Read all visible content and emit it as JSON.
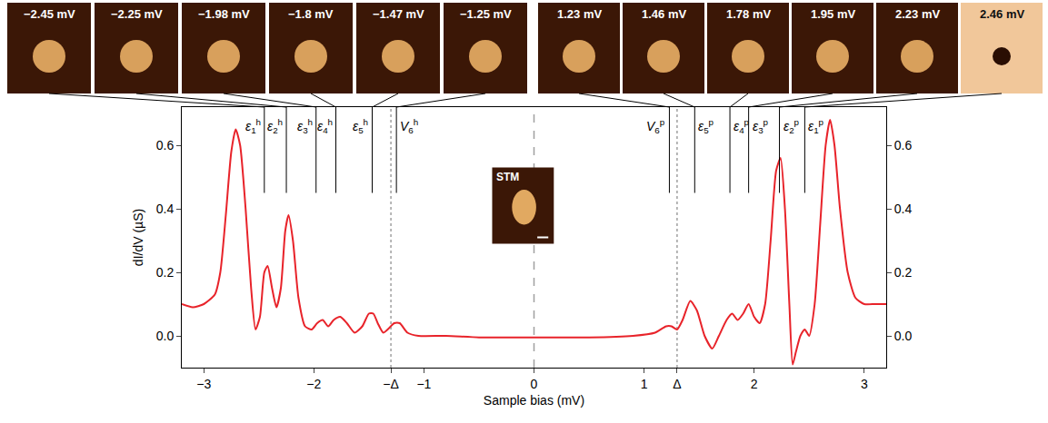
{
  "chart_data": {
    "type": "line",
    "x_label": "Sample bias (mV)",
    "y_label": "dI/dV (µS)",
    "color": "#e8232a",
    "x": [
      -3.2,
      -3.1,
      -3.0,
      -2.9,
      -2.85,
      -2.8,
      -2.75,
      -2.71,
      -2.67,
      -2.62,
      -2.57,
      -2.53,
      -2.49,
      -2.45,
      -2.42,
      -2.38,
      -2.34,
      -2.3,
      -2.26,
      -2.23,
      -2.19,
      -2.14,
      -2.08,
      -2.02,
      -1.97,
      -1.92,
      -1.87,
      -1.82,
      -1.76,
      -1.7,
      -1.63,
      -1.56,
      -1.5,
      -1.46,
      -1.42,
      -1.37,
      -1.33,
      -1.27,
      -1.22,
      -1.15,
      -1.05,
      -0.8,
      -0.5,
      0,
      0.5,
      0.9,
      1.1,
      1.2,
      1.25,
      1.3,
      1.35,
      1.42,
      1.48,
      1.55,
      1.62,
      1.68,
      1.75,
      1.8,
      1.85,
      1.9,
      1.95,
      2.0,
      2.05,
      2.1,
      2.15,
      2.2,
      2.24,
      2.28,
      2.32,
      2.35,
      2.38,
      2.42,
      2.46,
      2.5,
      2.55,
      2.6,
      2.65,
      2.69,
      2.73,
      2.78,
      2.85,
      2.92,
      3.0,
      3.1,
      3.2
    ],
    "values": [
      0.1,
      0.09,
      0.1,
      0.13,
      0.2,
      0.38,
      0.58,
      0.65,
      0.6,
      0.4,
      0.15,
      0.02,
      0.06,
      0.2,
      0.22,
      0.15,
      0.09,
      0.15,
      0.33,
      0.38,
      0.3,
      0.12,
      0.03,
      0.02,
      0.04,
      0.05,
      0.03,
      0.05,
      0.06,
      0.04,
      0.01,
      0.03,
      0.07,
      0.07,
      0.04,
      0.01,
      0.02,
      0.04,
      0.04,
      0.01,
      0,
      0,
      -0.005,
      -0.005,
      -0.005,
      0,
      0.01,
      0.03,
      0.03,
      0.02,
      0.05,
      0.11,
      0.08,
      0,
      -0.04,
      0,
      0.05,
      0.07,
      0.05,
      0.07,
      0.1,
      0.06,
      0.04,
      0.1,
      0.3,
      0.52,
      0.56,
      0.4,
      0.1,
      -0.09,
      -0.05,
      0,
      0.02,
      0,
      0.1,
      0.35,
      0.6,
      0.68,
      0.6,
      0.4,
      0.2,
      0.12,
      0.1,
      0.1,
      0.1
    ],
    "xlim": [
      -3.2,
      3.2
    ],
    "xticks": [
      {
        "value": -3,
        "label": "−3"
      },
      {
        "value": -2,
        "label": "−2"
      },
      {
        "value": -1.3,
        "label": "−Δ"
      },
      {
        "value": -1,
        "label": "−1"
      },
      0,
      1,
      {
        "value": 1.3,
        "label": "Δ"
      },
      2,
      3
    ],
    "ylim": [
      -0.1,
      0.72
    ],
    "yticks": [
      {
        "value": 0,
        "label": "0.0"
      },
      0.2,
      0.4,
      0.6
    ],
    "y2lim": [
      -0.1,
      0.72
    ],
    "y2ticks": [
      {
        "value": 0,
        "label": "0.0"
      },
      0.2,
      0.4,
      0.6
    ],
    "grid": false,
    "annotations": [
      {
        "symbol": "ε",
        "sub": "1",
        "sup": "h",
        "x": -2.45,
        "image_label": "−2.45 mV"
      },
      {
        "symbol": "ε",
        "sub": "2",
        "sup": "h",
        "x": -2.25,
        "image_label": "−2.25 mV"
      },
      {
        "symbol": "ε",
        "sub": "3",
        "sup": "h",
        "x": -1.98,
        "image_label": "−1.98 mV"
      },
      {
        "symbol": "ε",
        "sub": "4",
        "sup": "h",
        "x": -1.8,
        "image_label": "−1.8 mV"
      },
      {
        "symbol": "ε",
        "sub": "5",
        "sup": "h",
        "x": -1.47,
        "image_label": "−1.47 mV"
      },
      {
        "symbol": "V",
        "sub": "6",
        "sup": "h",
        "x": -1.25,
        "image_label": "−1.25 mV"
      },
      {
        "symbol": "V",
        "sub": "6",
        "sup": "p",
        "x": 1.23,
        "image_label": "1.23 mV"
      },
      {
        "symbol": "ε",
        "sub": "5",
        "sup": "p",
        "x": 1.46,
        "image_label": "1.46 mV"
      },
      {
        "symbol": "ε",
        "sub": "4",
        "sup": "p",
        "x": 1.78,
        "image_label": "1.78 mV"
      },
      {
        "symbol": "ε",
        "sub": "3",
        "sup": "p",
        "x": 1.95,
        "image_label": "1.95 mV"
      },
      {
        "symbol": "ε",
        "sub": "2",
        "sup": "p",
        "x": 2.23,
        "image_label": "2.23 mV"
      },
      {
        "symbol": "ε",
        "sub": "1",
        "sup": "p",
        "x": 2.46,
        "image_label": "2.46 mV"
      }
    ],
    "inset_label": "STM"
  }
}
